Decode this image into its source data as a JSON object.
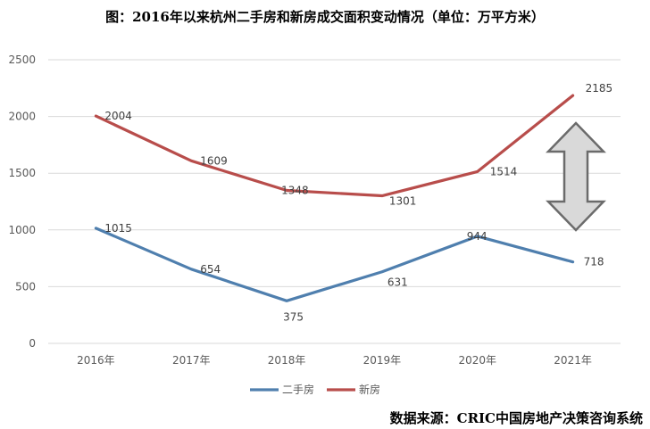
{
  "title": "图：2016年以来杭州二手房和新房成交面积变动情况（单位：万平方米）",
  "source": "数据来源：CRIC中国房地产决策咨询系统",
  "colors": {
    "second_hand": "#4f7fae",
    "new_house": "#b84d4b",
    "grid": "#d9d9d9",
    "arrow_fill": "#d9d9d9",
    "arrow_stroke": "#6b6b6b"
  },
  "chart_data": {
    "type": "line",
    "title": "图：2016年以来杭州二手房和新房成交面积变动情况（单位：万平方米）",
    "categories": [
      "2016年",
      "2017年",
      "2018年",
      "2019年",
      "2020年",
      "2021年"
    ],
    "series": [
      {
        "name": "二手房",
        "values": [
          1015,
          654,
          375,
          631,
          944,
          718
        ]
      },
      {
        "name": "新房",
        "values": [
          2004,
          1609,
          1348,
          1301,
          1514,
          2185
        ]
      }
    ],
    "yticks": [
      0,
      500,
      1000,
      1500,
      2000,
      2500
    ],
    "ylim": [
      0,
      2500
    ],
    "xlabel": "",
    "ylabel": "",
    "legend": "bottom"
  }
}
